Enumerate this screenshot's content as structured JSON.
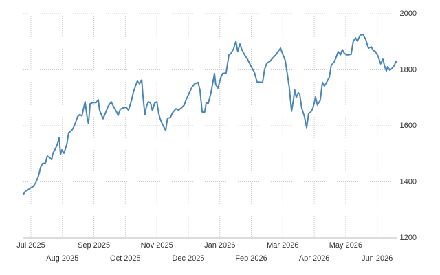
{
  "chart_data": {
    "type": "line",
    "color": "#4a85b8",
    "grid": true,
    "x": [
      -0.24,
      -0.17,
      -0.11,
      0,
      0.07,
      0.15,
      0.24,
      0.31,
      0.37,
      0.46,
      0.52,
      0.59,
      0.66,
      0.7,
      0.76,
      0.83,
      0.9,
      0.94,
      0.98,
      1.05,
      1.14,
      1.2,
      1.29,
      1.35,
      1.42,
      1.48,
      1.55,
      1.62,
      1.66,
      1.72,
      1.79,
      1.83,
      1.88,
      1.97,
      2.07,
      2.14,
      2.18,
      2.29,
      2.38,
      2.45,
      2.55,
      2.62,
      2.71,
      2.77,
      2.84,
      2.93,
      3.03,
      3.1,
      3.19,
      3.25,
      3.32,
      3.38,
      3.45,
      3.52,
      3.56,
      3.62,
      3.67,
      3.73,
      3.8,
      3.86,
      3.93,
      4.0,
      4.06,
      4.1,
      4.17,
      4.28,
      4.34,
      4.43,
      4.5,
      4.61,
      4.69,
      4.8,
      4.87,
      4.93,
      5.02,
      5.11,
      5.2,
      5.31,
      5.37,
      5.44,
      5.52,
      5.57,
      5.63,
      5.72,
      5.83,
      5.87,
      5.94,
      6.03,
      6.09,
      6.2,
      6.29,
      6.35,
      6.44,
      6.51,
      6.57,
      6.64,
      6.7,
      6.79,
      6.88,
      6.99,
      7.1,
      7.18,
      7.36,
      7.42,
      7.49,
      7.6,
      7.69,
      7.79,
      7.86,
      7.93,
      7.99,
      8.08,
      8.14,
      8.21,
      8.28,
      8.34,
      8.38,
      8.43,
      8.49,
      8.54,
      8.6,
      8.69,
      8.76,
      8.82,
      8.89,
      8.95,
      9.0,
      9.04,
      9.1,
      9.19,
      9.26,
      9.32,
      9.39,
      9.48,
      9.54,
      9.63,
      9.69,
      9.76,
      9.83,
      9.89,
      9.96,
      10.04,
      10.17,
      10.24,
      10.31,
      10.37,
      10.46,
      10.55,
      10.63,
      10.72,
      10.81,
      10.87,
      10.94,
      11.03,
      11.11,
      11.18,
      11.24,
      11.29,
      11.33,
      11.4,
      11.46,
      11.55,
      11.59,
      11.64
    ],
    "values": [
      1355,
      1367,
      1370,
      1379,
      1383,
      1396,
      1421,
      1453,
      1465,
      1467,
      1492,
      1487,
      1479,
      1502,
      1514,
      1531,
      1558,
      1497,
      1514,
      1502,
      1534,
      1575,
      1583,
      1593,
      1612,
      1632,
      1640,
      1635,
      1656,
      1686,
      1627,
      1607,
      1679,
      1683,
      1683,
      1693,
      1656,
      1625,
      1649,
      1669,
      1686,
      1669,
      1652,
      1637,
      1659,
      1664,
      1666,
      1656,
      1688,
      1718,
      1742,
      1760,
      1750,
      1764,
      1706,
      1639,
      1669,
      1686,
      1681,
      1654,
      1681,
      1686,
      1644,
      1627,
      1607,
      1583,
      1627,
      1629,
      1647,
      1661,
      1656,
      1666,
      1674,
      1693,
      1715,
      1737,
      1750,
      1755,
      1728,
      1649,
      1649,
      1683,
      1679,
      1718,
      1787,
      1747,
      1735,
      1772,
      1787,
      1789,
      1853,
      1858,
      1875,
      1902,
      1865,
      1892,
      1872,
      1853,
      1838,
      1813,
      1791,
      1757,
      1755,
      1801,
      1823,
      1831,
      1843,
      1855,
      1867,
      1877,
      1858,
      1833,
      1789,
      1735,
      1652,
      1693,
      1728,
      1701,
      1718,
      1713,
      1664,
      1632,
      1593,
      1644,
      1649,
      1661,
      1681,
      1703,
      1674,
      1691,
      1755,
      1742,
      1755,
      1774,
      1816,
      1828,
      1843,
      1865,
      1853,
      1872,
      1858,
      1853,
      1855,
      1902,
      1914,
      1902,
      1924,
      1926,
      1909,
      1877,
      1882,
      1870,
      1865,
      1848,
      1821,
      1838,
      1811,
      1796,
      1811,
      1799,
      1804,
      1816,
      1831,
      1823
    ],
    "xlim": [
      -0.24,
      11.64
    ],
    "xticks": [
      {
        "value": 0,
        "label": "Jul 2025"
      },
      {
        "value": 1,
        "label": "Aug 2025"
      },
      {
        "value": 2,
        "label": "Sep 2025"
      },
      {
        "value": 3,
        "label": "Oct 2025"
      },
      {
        "value": 4,
        "label": "Nov 2025"
      },
      {
        "value": 5,
        "label": "Dec 2025"
      },
      {
        "value": 6,
        "label": "Jan 2026"
      },
      {
        "value": 7,
        "label": "Feb 2026"
      },
      {
        "value": 8,
        "label": "Mar 2026"
      },
      {
        "value": 9,
        "label": "Apr 2026"
      },
      {
        "value": 10,
        "label": "May 2026"
      },
      {
        "value": 11,
        "label": "Jun 2026"
      }
    ],
    "ylim": [
      1200,
      2000
    ],
    "yticks": [
      1200,
      1400,
      1600,
      1800,
      2000
    ]
  }
}
